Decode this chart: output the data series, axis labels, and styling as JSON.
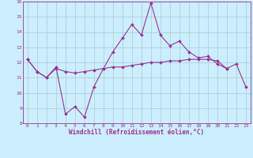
{
  "xlabel": "Windchill (Refroidissement éolien,°C)",
  "background_color": "#cceeff",
  "grid_color": "#aacccc",
  "line_color": "#993399",
  "hours": [
    0,
    1,
    2,
    3,
    4,
    5,
    6,
    7,
    8,
    9,
    10,
    11,
    12,
    13,
    14,
    15,
    16,
    17,
    18,
    19,
    20,
    21,
    22,
    23
  ],
  "series1": [
    12.2,
    11.4,
    11.0,
    11.7,
    8.6,
    9.1,
    8.4,
    10.4,
    11.6,
    12.7,
    13.6,
    14.5,
    13.8,
    15.9,
    13.8,
    13.1,
    13.4,
    12.7,
    12.3,
    12.4,
    11.9,
    11.6,
    null,
    null
  ],
  "series2": [
    12.2,
    11.4,
    11.0,
    11.6,
    11.4,
    11.3,
    11.4,
    11.5,
    11.6,
    11.7,
    11.7,
    11.8,
    11.9,
    12.0,
    12.0,
    12.1,
    12.1,
    12.2,
    12.2,
    12.2,
    12.1,
    11.6,
    null,
    null
  ],
  "series3": [
    null,
    null,
    null,
    null,
    null,
    null,
    null,
    null,
    null,
    null,
    null,
    null,
    null,
    null,
    null,
    null,
    null,
    null,
    null,
    null,
    null,
    11.6,
    11.9,
    10.4
  ],
  "ylim": [
    8,
    16
  ],
  "xlim": [
    -0.5,
    23.5
  ],
  "yticks": [
    8,
    9,
    10,
    11,
    12,
    13,
    14,
    15,
    16
  ],
  "xticks": [
    0,
    1,
    2,
    3,
    4,
    5,
    6,
    7,
    8,
    9,
    10,
    11,
    12,
    13,
    14,
    15,
    16,
    17,
    18,
    19,
    20,
    21,
    22,
    23
  ]
}
